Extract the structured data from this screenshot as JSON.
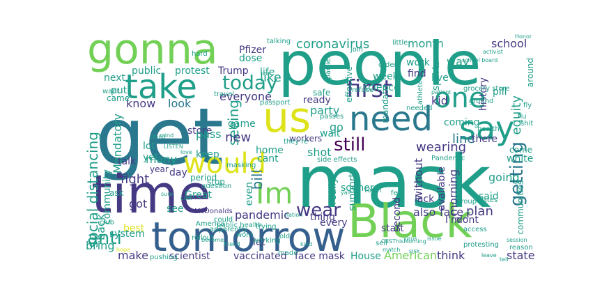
{
  "word_cloud": {
    "colormap": "viridis",
    "palette": {
      "green": "#73d056",
      "lime": "#b8de29",
      "yellow": "#dde318",
      "teal": "#1f9e89",
      "cyan": "#2a788e",
      "blue": "#355f8d",
      "indigo": "#443983",
      "purple": "#440154",
      "aqua": "#3bbb75",
      "light": "#a6d96a"
    },
    "words": [
      "mask",
      "get",
      "people",
      "time",
      "Black",
      "tomorrow",
      "gonna",
      "us",
      "need",
      "take",
      "say",
      "would",
      "one",
      "Im",
      "first",
      "still",
      "getting",
      "anti",
      "wear",
      "coronavirus",
      "today",
      "social distancing",
      "equity",
      "wearing",
      "seeing",
      "bill",
      "month",
      "school",
      "sports",
      "like",
      "line",
      "know",
      "everyone",
      "look",
      "kid",
      "party",
      "go",
      "new",
      "shot",
      "many",
      "fight",
      "got",
      "back",
      "make",
      "pandemic",
      "scientist",
      "vaccinated",
      "face mask",
      "House",
      "American",
      "think",
      "state",
      "plan",
      "face",
      "also",
      "going",
      "morning",
      "without",
      "start",
      "second",
      "thing",
      "every",
      "available",
      "come",
      "white",
      "coming",
      "way",
      "history",
      "live",
      "public",
      "protest",
      "Trump",
      "dose",
      "life",
      "Pfizer",
      "Mandatory",
      "community",
      "communities",
      "lack",
      "said",
      "wait",
      "ready",
      "store",
      "keep",
      "pass",
      "game",
      "home",
      "cant",
      "day",
      "period",
      "stop",
      "Great",
      "best",
      "see",
      "system",
      "even",
      "sooner",
      "really",
      "support",
      "dont",
      "I'm",
      "let",
      "bring",
      "next",
      "put",
      "came",
      "lot",
      "yet",
      "talk",
      "year",
      "ask",
      "right",
      "safe",
      "science",
      "effective",
      "work",
      "find",
      "mandate",
      "week",
      "there",
      "around",
      "grocery store",
      "workers",
      "they're",
      "McDonalds",
      "question",
      "public health",
      "trying",
      "America",
      "protesting",
      "session",
      "reason",
      "Gates",
      "health",
      "access",
      "group",
      "town",
      "feel",
      "needed",
      "order",
      "join",
      "refuse",
      "travel",
      "parties",
      "passes",
      "side effects",
      "Pandemic",
      "athlete",
      "pill",
      "little",
      "talking",
      "passport",
      "apparently",
      "working",
      "masking",
      "ground",
      "shit",
      "fly",
      "Honor",
      "activist",
      "hard",
      "want",
      "club",
      "twitter",
      "rollout",
      "pushing",
      "wont",
      "old",
      "made",
      "sell",
      "CBSThisMorning",
      "match",
      "patient",
      "LISTEN",
      "love",
      "could",
      "yall",
      "hope",
      "become",
      "friend",
      "nation",
      "kind",
      "stand",
      "mind",
      "virus",
      "sick",
      "issue",
      "leave",
      "tell",
      "flu",
      "school board",
      "sure",
      "cool"
    ]
  }
}
